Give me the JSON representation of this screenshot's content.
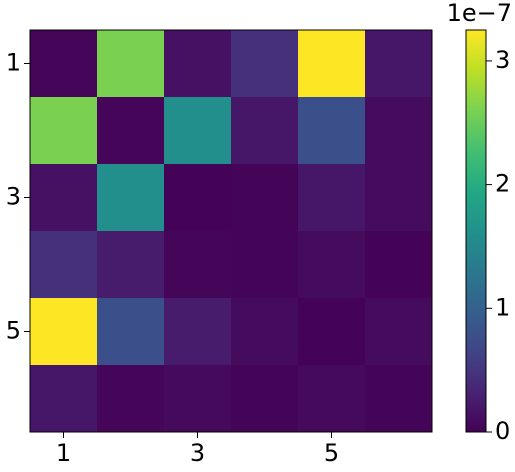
{
  "chart_data": {
    "type": "heatmap",
    "x": [
      1,
      2,
      3,
      4,
      5,
      6
    ],
    "y": [
      1,
      2,
      3,
      4,
      5,
      6
    ],
    "values": [
      [
        0.05,
        2.6,
        0.15,
        0.45,
        3.25,
        0.2
      ],
      [
        2.6,
        0.05,
        1.6,
        0.2,
        0.8,
        0.1
      ],
      [
        0.15,
        1.6,
        0.02,
        0.03,
        0.2,
        0.1
      ],
      [
        0.45,
        0.25,
        0.05,
        0.03,
        0.1,
        0.02
      ],
      [
        3.25,
        0.8,
        0.25,
        0.1,
        0.02,
        0.1
      ],
      [
        0.2,
        0.05,
        0.08,
        0.03,
        0.08,
        0.03
      ]
    ],
    "colormap": "viridis",
    "xlim": [
      0.5,
      6.5
    ],
    "ylim": [
      6.5,
      0.5
    ],
    "xticks": [
      1,
      3,
      5
    ],
    "yticks": [
      1,
      3,
      5
    ],
    "zlim": [
      0,
      3.25
    ],
    "colorbar_ticks": [
      0,
      1,
      2,
      3
    ],
    "colorbar_offset_label": "1e−7"
  }
}
